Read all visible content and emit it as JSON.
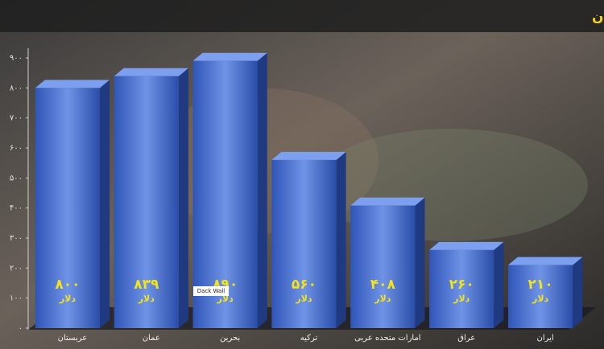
{
  "chart_data": {
    "type": "bar3d",
    "title": "مقایسه دستمزد ماهانه کارگران در کشورهای همسایه با کارگران ایران",
    "categories": [
      "عربستان",
      "عمان",
      "بحرین",
      "ترکیه",
      "امارات متحده عربی",
      "عراق",
      "ایران"
    ],
    "values": [
      800,
      839,
      890,
      560,
      408,
      260,
      210
    ],
    "value_labels": [
      "۸۰۰",
      "۸۳۹",
      "۸۹۰",
      "۵۶۰",
      "۴۰۸",
      "۲۶۰",
      "۲۱۰"
    ],
    "value_unit": "دلار",
    "color": "#3a63c4",
    "ylim": [
      0,
      900
    ],
    "yticks": [
      {
        "value": 0,
        "label": "۰"
      },
      {
        "value": 100,
        "label": "۱۰۰"
      },
      {
        "value": 200,
        "label": "۲۰۰"
      },
      {
        "value": 300,
        "label": "۳۰۰"
      },
      {
        "value": 400,
        "label": "۴۰۰"
      },
      {
        "value": 500,
        "label": "۵۰۰"
      },
      {
        "value": 600,
        "label": "۶۰۰"
      },
      {
        "value": 700,
        "label": "۷۰۰"
      },
      {
        "value": 800,
        "label": "۸۰۰"
      },
      {
        "value": 900,
        "label": "۹۰۰"
      }
    ],
    "watermark": "Dack Wall"
  }
}
